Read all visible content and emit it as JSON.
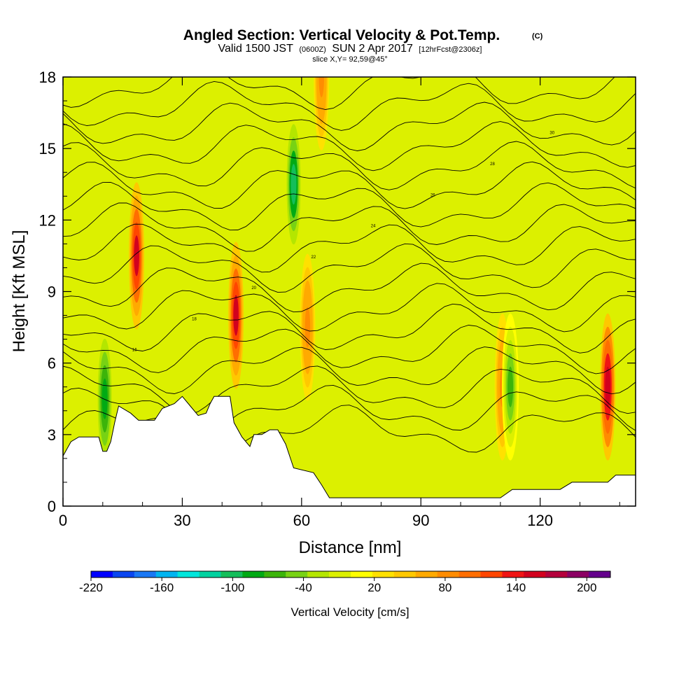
{
  "header": {
    "title": "Angled Section: Vertical Velocity & Pot.Temp.",
    "copyright": "(C)",
    "valid_prefix": "Valid 1500 JST",
    "valid_zulu": "(0600Z)",
    "valid_day": "SUN 2 Apr 2017",
    "forecast": "[12hrFcst@2306z]",
    "slice": "slice X,Y= 92,59@45°"
  },
  "chart_data": {
    "type": "heatmap",
    "xlabel": "Distance [nm]",
    "ylabel": "Height [Kft MSL]",
    "xlim": [
      0,
      144
    ],
    "ylim": [
      0,
      18
    ],
    "xticks": [
      0,
      30,
      60,
      90,
      120
    ],
    "yticks": [
      0,
      3,
      6,
      9,
      12,
      15,
      18
    ],
    "colorbar": {
      "label": "Vertical Velocity [cm/s]",
      "min": -220,
      "max": 220,
      "tick_values": [
        -220,
        -160,
        -100,
        -40,
        20,
        80,
        140,
        200
      ],
      "tick_labels": [
        "-220",
        "-160",
        "-100",
        "-40",
        "20",
        "80",
        "140",
        "200"
      ],
      "colors": [
        "#0000ff",
        "#0a46f0",
        "#1a78f5",
        "#00b4f0",
        "#00e6dc",
        "#00d2a0",
        "#14be5a",
        "#00aa14",
        "#3cb40a",
        "#78d214",
        "#b4e600",
        "#dcf000",
        "#ffff00",
        "#ffe100",
        "#ffc800",
        "#ffaa00",
        "#ff8c00",
        "#ff6e00",
        "#ff4600",
        "#f01414",
        "#d2001e",
        "#b4003c",
        "#8c0064",
        "#64008c"
      ]
    },
    "terrain_profile": [
      [
        0,
        2.1
      ],
      [
        2,
        2.7
      ],
      [
        4,
        2.9
      ],
      [
        9,
        2.9
      ],
      [
        10,
        2.3
      ],
      [
        11,
        2.3
      ],
      [
        12,
        2.7
      ],
      [
        13,
        3.5
      ],
      [
        14,
        4.2
      ],
      [
        17,
        3.9
      ],
      [
        19,
        3.6
      ],
      [
        23,
        3.6
      ],
      [
        25,
        4.1
      ],
      [
        28,
        4.3
      ],
      [
        30,
        4.6
      ],
      [
        32,
        4.2
      ],
      [
        34,
        3.8
      ],
      [
        36,
        3.9
      ],
      [
        37,
        4.3
      ],
      [
        38,
        4.6
      ],
      [
        42,
        4.6
      ],
      [
        43,
        3.5
      ],
      [
        45,
        2.9
      ],
      [
        47,
        2.5
      ],
      [
        48,
        3.0
      ],
      [
        50,
        3.0
      ],
      [
        52,
        3.2
      ],
      [
        54,
        3.2
      ],
      [
        56,
        2.6
      ],
      [
        58,
        1.6
      ],
      [
        63,
        1.4
      ],
      [
        65,
        0.9
      ],
      [
        67,
        0.35
      ],
      [
        85,
        0.35
      ],
      [
        110,
        0.35
      ],
      [
        113,
        0.7
      ],
      [
        125,
        0.7
      ],
      [
        128,
        1.0
      ],
      [
        137,
        1.0
      ],
      [
        139,
        1.3
      ],
      [
        144,
        1.3
      ]
    ],
    "theta_contour_labels": [
      "16",
      "18",
      "20",
      "22",
      "24",
      "26",
      "28",
      "30"
    ],
    "vertical_velocity_features": [
      {
        "x": 18.5,
        "y": 10.5,
        "w": 150,
        "kind": "updraft"
      },
      {
        "x": 43.5,
        "y": 8.0,
        "w": 150,
        "kind": "updraft"
      },
      {
        "x": 137,
        "y": 5.0,
        "w": 160,
        "kind": "updraft"
      },
      {
        "x": 65,
        "y": 18.0,
        "w": 80,
        "kind": "updraft"
      },
      {
        "x": 61.5,
        "y": 7.5,
        "w": 80,
        "kind": "updraft"
      },
      {
        "x": 110.5,
        "y": 5.0,
        "w": 80,
        "kind": "updraft"
      },
      {
        "x": 58,
        "y": 13.5,
        "w": -100,
        "kind": "downdraft"
      },
      {
        "x": 10.5,
        "y": 4.5,
        "w": -90,
        "kind": "downdraft"
      },
      {
        "x": 112.5,
        "y": 5.0,
        "w": -70,
        "kind": "downdraft"
      }
    ]
  }
}
